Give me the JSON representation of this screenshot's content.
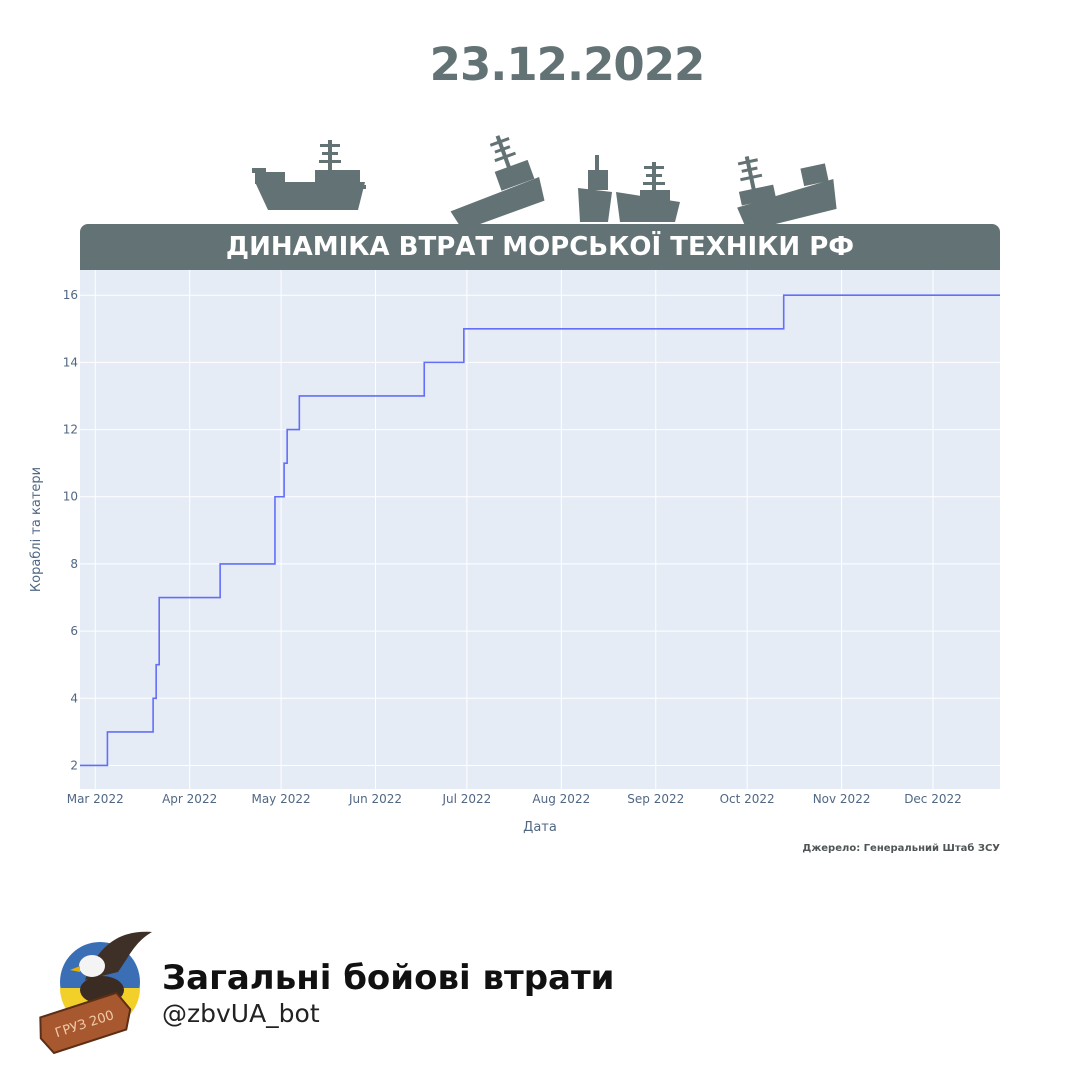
{
  "header": {
    "date": "23.12.2022"
  },
  "banner": {
    "title": "ДИНАМІКА ВТРАТ МОРСЬКОЇ ТЕХНІКИ РФ"
  },
  "source": "Джерело: Генеральний Штаб ЗСУ",
  "footer": {
    "title": "Загальні бойові втрати",
    "handle": "@zbvUA_bot",
    "logo_icon": "eagle-coffin-logo",
    "logo_text": "ГРУЗ 200"
  },
  "colors": {
    "slate": "#637274",
    "plot_bg": "#e5ecf6",
    "line": "#636efa",
    "grid": "#ffffff"
  },
  "chart_data": {
    "type": "line",
    "line_shape": "step",
    "xlabel": "Дата",
    "ylabel": "Кораблі та катери",
    "x_range": [
      "2022-02-24",
      "2022-12-23"
    ],
    "y_range": [
      1.3,
      16.75
    ],
    "y_ticks": [
      2,
      4,
      6,
      8,
      10,
      12,
      14,
      16
    ],
    "x_ticks": [
      {
        "date": "2022-03-01",
        "label": "Mar 2022"
      },
      {
        "date": "2022-04-01",
        "label": "Apr 2022"
      },
      {
        "date": "2022-05-01",
        "label": "May 2022"
      },
      {
        "date": "2022-06-01",
        "label": "Jun 2022"
      },
      {
        "date": "2022-07-01",
        "label": "Jul 2022"
      },
      {
        "date": "2022-08-01",
        "label": "Aug 2022"
      },
      {
        "date": "2022-09-01",
        "label": "Sep 2022"
      },
      {
        "date": "2022-10-01",
        "label": "Oct 2022"
      },
      {
        "date": "2022-11-01",
        "label": "Nov 2022"
      },
      {
        "date": "2022-12-01",
        "label": "Dec 2022"
      }
    ],
    "grid": true,
    "series": [
      {
        "points": [
          {
            "x": "2022-02-24",
            "y": 2
          },
          {
            "x": "2022-03-05",
            "y": 3
          },
          {
            "x": "2022-03-20",
            "y": 4
          },
          {
            "x": "2022-03-21",
            "y": 5
          },
          {
            "x": "2022-03-22",
            "y": 7
          },
          {
            "x": "2022-04-11",
            "y": 8
          },
          {
            "x": "2022-04-29",
            "y": 10
          },
          {
            "x": "2022-05-02",
            "y": 11
          },
          {
            "x": "2022-05-03",
            "y": 12
          },
          {
            "x": "2022-05-07",
            "y": 13
          },
          {
            "x": "2022-06-17",
            "y": 14
          },
          {
            "x": "2022-06-30",
            "y": 15
          },
          {
            "x": "2022-10-13",
            "y": 16
          },
          {
            "x": "2022-12-23",
            "y": 16
          }
        ]
      }
    ]
  }
}
